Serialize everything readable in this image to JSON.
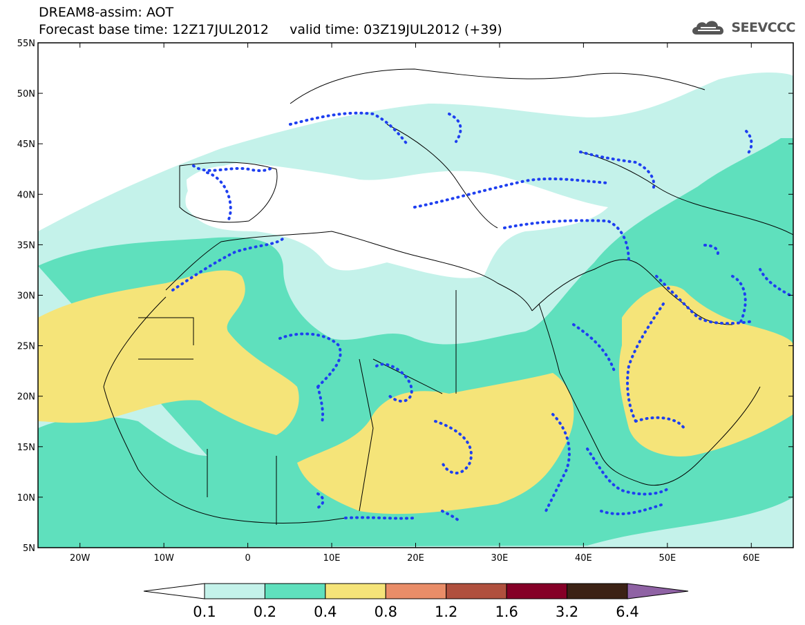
{
  "header": {
    "line1": "DREAM8-assim: AOT",
    "line2": "Forecast base time: 12Z17JUL2012     valid time: 03Z19JUL2012 (+39)"
  },
  "logo": {
    "text": "SEEVCCC",
    "icon": "cloud-icon"
  },
  "map": {
    "lat_range": [
      5,
      55
    ],
    "lon_range": [
      -25,
      65
    ],
    "lat_ticks": [
      "55N",
      "50N",
      "45N",
      "40N",
      "35N",
      "30N",
      "25N",
      "20N",
      "15N",
      "10N",
      "5N"
    ],
    "lon_ticks": [
      "20W",
      "10W",
      "0",
      "10E",
      "20E",
      "30E",
      "40E",
      "50E",
      "60E"
    ]
  },
  "legend": {
    "labels": [
      "0.1",
      "0.2",
      "0.4",
      "0.8",
      "1.2",
      "1.6",
      "3.2",
      "6.4"
    ],
    "colors": [
      "#ffffff",
      "#c4f2ea",
      "#5fe0bd",
      "#f5e479",
      "#e98d68",
      "#b0503e",
      "#850027",
      "#3c2215",
      "#8f62a4"
    ]
  }
}
